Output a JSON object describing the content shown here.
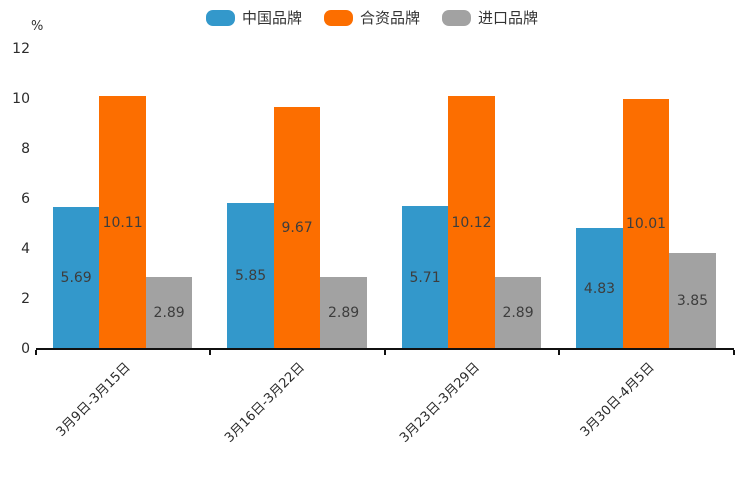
{
  "legend": {
    "items": [
      {
        "label": "中国品牌",
        "color": "#3398cb"
      },
      {
        "label": "合资品牌",
        "color": "#fc6e00"
      },
      {
        "label": "进口品牌",
        "color": "#a2a2a2"
      }
    ]
  },
  "y_axis": {
    "unit_label": "%",
    "ticks": [
      0,
      2,
      4,
      6,
      8,
      10,
      12
    ]
  },
  "chart_data": {
    "type": "bar",
    "title": "",
    "categories": [
      "3月9日-3月15日",
      "3月16日-3月22日",
      "3月23日-3月29日",
      "3月30日-4月5日"
    ],
    "series": [
      {
        "name": "中国品牌",
        "color": "#3398cb",
        "values": [
          5.69,
          5.85,
          5.71,
          4.83
        ]
      },
      {
        "name": "合资品牌",
        "color": "#fc6e00",
        "values": [
          10.11,
          9.67,
          10.12,
          10.01
        ]
      },
      {
        "name": "进口品牌",
        "color": "#a2a2a2",
        "values": [
          2.89,
          2.89,
          2.89,
          3.85
        ]
      }
    ],
    "xlabel": "",
    "ylabel": "%",
    "ylim": [
      0,
      12
    ],
    "y_tick_step": 2,
    "grid": false,
    "legend_position": "top",
    "value_labels": "inside-center",
    "value_label_decimals": 2,
    "x_tick_rotation": 45
  },
  "colors": {
    "axis": "#111111",
    "value_label_text": "#3d3d3d",
    "tick_text": "#2b2b2b",
    "background": "#ffffff"
  }
}
